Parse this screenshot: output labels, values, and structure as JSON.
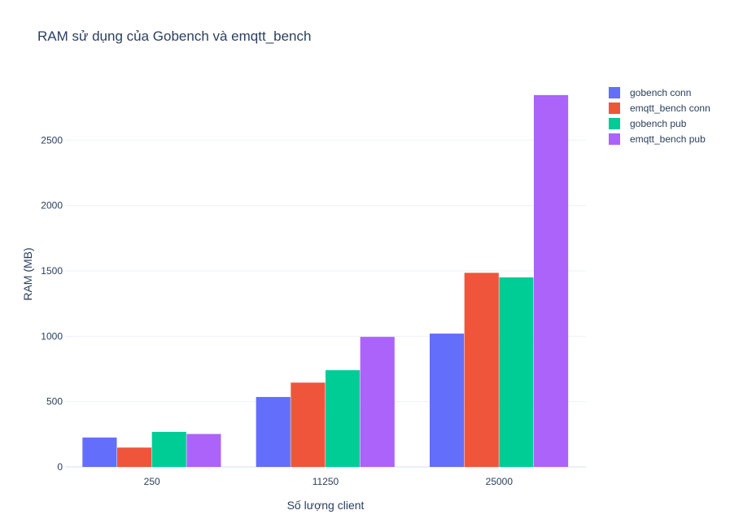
{
  "chart_data": {
    "type": "bar",
    "title": "RAM sử dụng của Gobench và emqtt_bench",
    "xlabel": "Số lượng client",
    "ylabel": "RAM (MB)",
    "categories": [
      "250",
      "11250",
      "25000"
    ],
    "ylim": [
      0,
      2950
    ],
    "yticks": [
      0,
      500,
      1000,
      1500,
      2000,
      2500
    ],
    "grid": true,
    "legend_position": "top-right",
    "series": [
      {
        "name": "gobench conn",
        "color": "#636efa",
        "values": [
          225,
          535,
          1020
        ]
      },
      {
        "name": "emqtt_bench conn",
        "color": "#ef553b",
        "values": [
          148,
          645,
          1485
        ]
      },
      {
        "name": "gobench pub",
        "color": "#00cc96",
        "values": [
          268,
          740,
          1450
        ]
      },
      {
        "name": "emqtt_bench pub",
        "color": "#ab63fa",
        "values": [
          252,
          995,
          2845
        ]
      }
    ]
  }
}
